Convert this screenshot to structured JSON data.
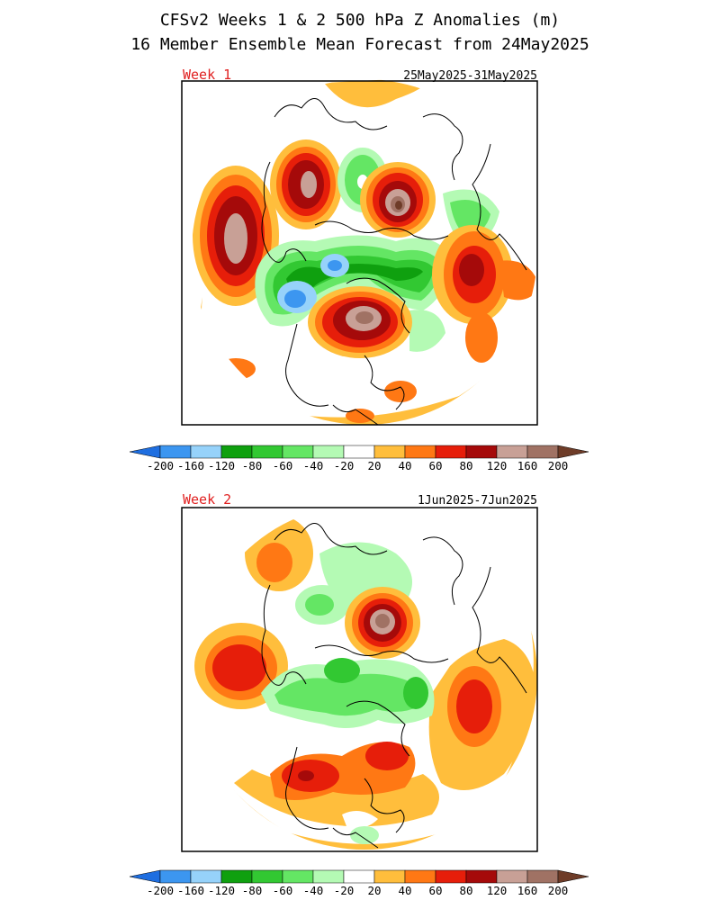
{
  "header": {
    "title_line1": "CFSv2 Weeks 1 & 2 500 hPa Z Anomalies (m)",
    "title_line2": "16 Member Ensemble Mean Forecast from 24May2025"
  },
  "panels": [
    {
      "week_label": "Week 1",
      "date_range": "25May2025-31May2025"
    },
    {
      "week_label": "Week 2",
      "date_range": "1Jun2025-7Jun2025"
    }
  ],
  "colorbar": {
    "tick_labels": [
      "-200",
      "-160",
      "-120",
      "-80",
      "-60",
      "-40",
      "-20",
      "20",
      "40",
      "60",
      "80",
      "120",
      "160",
      "200"
    ],
    "colors": [
      "#1e6ee0",
      "#3c96f0",
      "#96d2fa",
      "#0fa00f",
      "#32c832",
      "#64e664",
      "#b4fab4",
      "#ffffff",
      "#ffbe3c",
      "#ff7814",
      "#e61e0a",
      "#a50a0a",
      "#c8a096",
      "#a07264",
      "#6e3c28"
    ]
  },
  "legend_colors": {
    "orange": "#ffbe3c",
    "dark_orange": "#ff7814",
    "red": "#e61e0a",
    "dark_red": "#a50a0a",
    "light_brown": "#c8a096",
    "brown": "#a07264",
    "light_green": "#b4fab4",
    "green": "#64e664",
    "mid_green": "#32c832",
    "dark_green": "#0fa00f",
    "light_blue": "#96d2fa",
    "blue": "#3c96f0"
  }
}
